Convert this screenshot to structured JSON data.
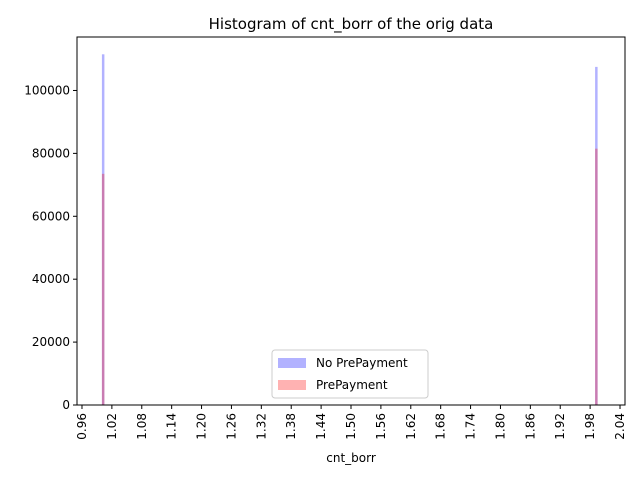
{
  "chart_data": {
    "type": "bar",
    "title": "Histogram of cnt_borr of the orig data",
    "xlabel": "cnt_borr",
    "ylabel": "",
    "xlim": [
      0.95,
      2.05
    ],
    "ylim": [
      0,
      117000
    ],
    "x_ticks": [
      "0.96",
      "1.02",
      "1.08",
      "1.14",
      "1.20",
      "1.26",
      "1.32",
      "1.38",
      "1.44",
      "1.50",
      "1.56",
      "1.62",
      "1.68",
      "1.74",
      "1.80",
      "1.86",
      "1.92",
      "1.98",
      "2.04"
    ],
    "y_ticks": [
      "0",
      "20000",
      "40000",
      "60000",
      "80000",
      "100000"
    ],
    "bin_width": 0.01,
    "series": [
      {
        "name": "No PrePayment",
        "color": "#0000ff",
        "opacity": 0.3,
        "x": [
          1.0,
          1.99
        ],
        "values": [
          111500,
          107500
        ]
      },
      {
        "name": "PrePayment",
        "color": "#ff0000",
        "opacity": 0.3,
        "x": [
          1.0,
          1.99
        ],
        "values": [
          73500,
          81500
        ]
      }
    ],
    "legend_position": "lower-center",
    "grid": false
  }
}
